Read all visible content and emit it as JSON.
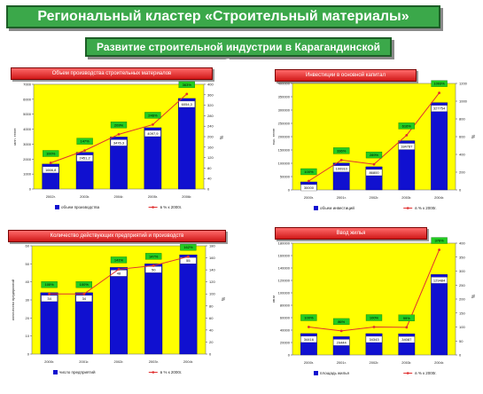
{
  "header": {
    "title": "Региональный кластер «Строительный материалы»",
    "subtitle": "Развитие строительной индустрии в Карагандинской области"
  },
  "colors": {
    "bar": "#1010d0",
    "line": "#e03030",
    "label_bg": "#22cc22",
    "plot_bg": "#ffff00",
    "title_red": "#d01818",
    "green": "#3ba84a"
  },
  "chart_data": [
    {
      "type": "bar",
      "title": "Объем производства строительных материалов",
      "ylabel": "млн. тенге",
      "y2label": "%",
      "categories": [
        "2002г.",
        "2003г.",
        "2004г.",
        "2005г.",
        "2006г."
      ],
      "series": [
        {
          "name": "объем производства",
          "type": "bar",
          "values": [
            1666.8,
            2451.2,
            3476.3,
            4097.9,
            6054.3
          ],
          "labels": [
            "1666,8",
            "2451,2",
            "3476,3",
            "4097,9",
            "6054,3"
          ]
        },
        {
          "name": "в % к 2000г.",
          "type": "line",
          "axis": "right",
          "values": [
            100,
            147,
            209,
            246,
            363
          ],
          "labels": [
            "100%",
            "147%",
            "209%",
            "246%",
            "363%"
          ]
        }
      ],
      "ylim": [
        0,
        7000
      ],
      "yticks": [
        "0",
        "1000",
        "2000",
        "3000",
        "4000",
        "5000",
        "6000",
        "7000"
      ],
      "y2lim": [
        0,
        400
      ],
      "y2ticks": [
        "0",
        "40",
        "80",
        "120",
        "160",
        "200",
        "240",
        "280",
        "320",
        "360",
        "400"
      ],
      "legend": "bottom"
    },
    {
      "type": "bar",
      "title": "Инвестиции в основной капитал",
      "ylabel": "тыс. тенге",
      "y2label": "%",
      "categories": [
        "2000г.",
        "2001г.",
        "2002г.",
        "2003г.",
        "2004г."
      ],
      "series": [
        {
          "name": "объем инвестиций",
          "type": "bar",
          "values": [
            30000,
            100910,
            86800,
            184787,
            327754
          ],
          "labels": [
            "30000",
            "100910",
            "86800",
            "184787",
            "327754"
          ]
        },
        {
          "name": "в % к 2000г.",
          "type": "line",
          "axis": "right",
          "values": [
            100,
            336,
            289,
            616,
            1093
          ],
          "labels": [
            "100%",
            "336%",
            "289%",
            "616%",
            "1093%"
          ]
        }
      ],
      "ylim": [
        0,
        400000
      ],
      "yticks": [
        "0",
        "50000",
        "100000",
        "150000",
        "200000",
        "250000",
        "300000",
        "350000",
        "400000"
      ],
      "y2lim": [
        0,
        1200
      ],
      "y2ticks": [
        "0",
        "200",
        "400",
        "600",
        "800",
        "1000",
        "1200"
      ],
      "legend": "bottom"
    },
    {
      "type": "bar",
      "title": "Количество действующих предприятий и производств",
      "ylabel": "количество предприятий",
      "y2label": "%",
      "categories": [
        "2000г.",
        "2001г.",
        "2002г.",
        "2003г.",
        "2004г."
      ],
      "series": [
        {
          "name": "число предприятий",
          "type": "bar",
          "values": [
            34,
            34,
            48,
            50,
            55
          ],
          "labels": [
            "34",
            "34",
            "48",
            "50",
            "55"
          ]
        },
        {
          "name": "в % к 2000г.",
          "type": "line",
          "axis": "right",
          "values": [
            100,
            100,
            141,
            147,
            162
          ],
          "labels": [
            "100%",
            "100%",
            "141%",
            "147%",
            "162%"
          ]
        }
      ],
      "ylim": [
        0,
        60
      ],
      "yticks": [
        "0",
        "10",
        "20",
        "30",
        "40",
        "50",
        "60"
      ],
      "y2lim": [
        0,
        180
      ],
      "y2ticks": [
        "0",
        "20",
        "40",
        "60",
        "80",
        "100",
        "120",
        "140",
        "160",
        "180"
      ],
      "legend": "bottom"
    },
    {
      "type": "bar",
      "title": "Ввод жилья",
      "ylabel": "кв.м",
      "y2label": "%",
      "categories": [
        "2000г.",
        "2001г.",
        "2002г.",
        "2003г.",
        "2004г."
      ],
      "series": [
        {
          "name": "площадь жилья",
          "type": "bar",
          "values": [
            34416,
            29444,
            34343,
            34087,
            129484
          ],
          "labels": [
            "34416",
            "29444",
            "34343",
            "34087",
            "129484"
          ]
        },
        {
          "name": "в % к 2000г.",
          "type": "line",
          "axis": "right",
          "values": [
            100,
            86,
            100,
            99,
            376
          ],
          "labels": [
            "100%",
            "86%",
            "100%",
            "99%",
            "376%"
          ]
        }
      ],
      "ylim": [
        0,
        180000
      ],
      "yticks": [
        "0",
        "20000",
        "40000",
        "60000",
        "80000",
        "100000",
        "120000",
        "140000",
        "160000",
        "180000"
      ],
      "y2lim": [
        0,
        400
      ],
      "y2ticks": [
        "0",
        "50",
        "100",
        "150",
        "200",
        "250",
        "300",
        "350",
        "400"
      ],
      "legend": "bottom"
    }
  ]
}
